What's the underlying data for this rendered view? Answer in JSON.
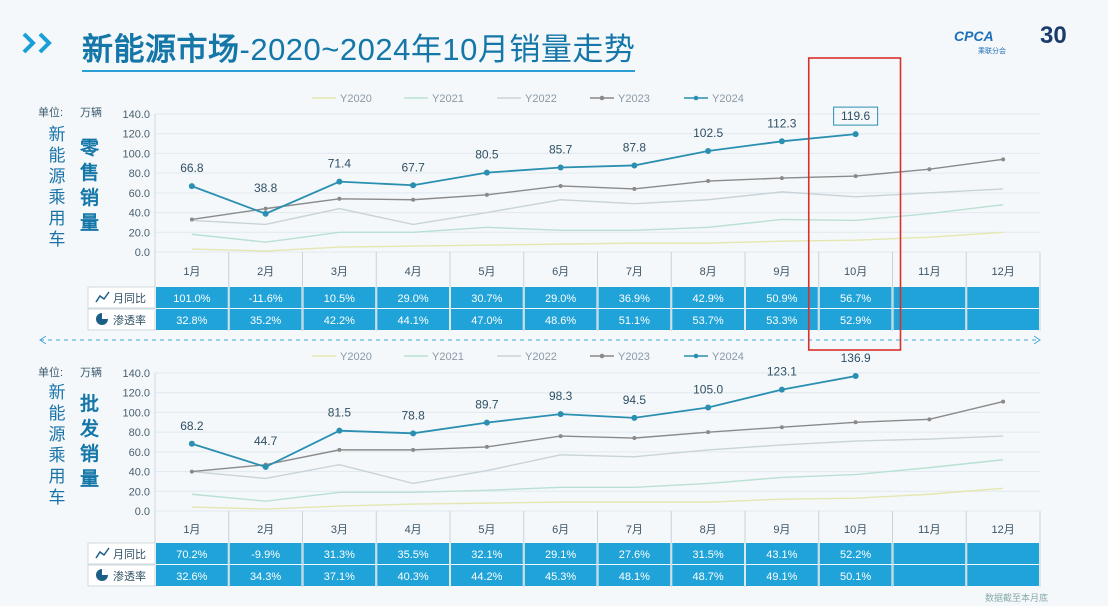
{
  "header": {
    "title_main": "新能源市场",
    "title_sub": "-2020~2024年10月销量走势",
    "logo_text": "CPCA",
    "logo_sub": "乘联分会",
    "logo_anniv": "30"
  },
  "axis_labels": {
    "unit_label": "单位:",
    "unit_value": "万辆",
    "side_label": "新能源乘用车",
    "retail_label": "零售销量",
    "wholesale_label": "批发销量"
  },
  "colors": {
    "accent": "#1477a8",
    "table_fill": "#1fa3d8",
    "y2024": "#2a8fb0",
    "y2023": "#8a8a8a",
    "y2022": "#c9d3d8",
    "y2021": "#b9e0d2",
    "y2020": "#e4e7b0",
    "highlight_box": "#d9302c"
  },
  "chart_data": [
    {
      "type": "line",
      "name_label": "零售销量",
      "categories": [
        "1月",
        "2月",
        "3月",
        "4月",
        "5月",
        "6月",
        "7月",
        "8月",
        "9月",
        "10月",
        "11月",
        "12月"
      ],
      "ylim": [
        0,
        140
      ],
      "yticks": [
        "0.0",
        "20.0",
        "40.0",
        "60.0",
        "80.0",
        "100.0",
        "120.0",
        "140.0"
      ],
      "series": [
        {
          "name": "Y2020",
          "values": [
            3,
            1,
            5,
            6,
            7,
            8,
            9,
            9,
            11,
            12,
            15,
            20
          ]
        },
        {
          "name": "Y2021",
          "values": [
            18,
            10,
            20,
            20,
            25,
            22,
            22,
            25,
            33,
            32,
            39,
            48
          ]
        },
        {
          "name": "Y2022",
          "values": [
            32,
            28,
            44,
            28,
            40,
            53,
            49,
            53,
            61,
            56,
            60,
            64
          ]
        },
        {
          "name": "Y2023",
          "values": [
            33,
            44,
            54,
            53,
            58,
            67,
            64,
            72,
            75,
            77,
            84,
            94
          ]
        },
        {
          "name": "Y2024",
          "values": [
            66.8,
            38.8,
            71.4,
            67.7,
            80.5,
            85.7,
            87.8,
            102.5,
            112.3,
            119.6,
            null,
            null
          ]
        }
      ],
      "data_labels": [
        "66.8",
        "38.8",
        "71.4",
        "67.7",
        "80.5",
        "85.7",
        "87.8",
        "102.5",
        "112.3",
        "119.6"
      ],
      "table": {
        "row1_label": "月同比",
        "row1": [
          "101.0%",
          "-11.6%",
          "10.5%",
          "29.0%",
          "30.7%",
          "29.0%",
          "36.9%",
          "42.9%",
          "50.9%",
          "56.7%",
          "",
          ""
        ],
        "row2_label": "渗透率",
        "row2": [
          "32.8%",
          "35.2%",
          "42.2%",
          "44.1%",
          "47.0%",
          "48.6%",
          "51.1%",
          "53.7%",
          "53.3%",
          "52.9%",
          "",
          ""
        ]
      }
    },
    {
      "type": "line",
      "name_label": "批发销量",
      "categories": [
        "1月",
        "2月",
        "3月",
        "4月",
        "5月",
        "6月",
        "7月",
        "8月",
        "9月",
        "10月",
        "11月",
        "12月"
      ],
      "ylim": [
        0,
        140
      ],
      "yticks": [
        "0.0",
        "20.0",
        "40.0",
        "60.0",
        "80.0",
        "100.0",
        "120.0",
        "140.0"
      ],
      "series": [
        {
          "name": "Y2020",
          "values": [
            4,
            2,
            5,
            7,
            8,
            9,
            9,
            9,
            12,
            13,
            17,
            23
          ]
        },
        {
          "name": "Y2021",
          "values": [
            17,
            10,
            19,
            19,
            21,
            24,
            24,
            28,
            34,
            37,
            44,
            52
          ]
        },
        {
          "name": "Y2022",
          "values": [
            40,
            33,
            47,
            28,
            41,
            57,
            55,
            62,
            67,
            71,
            73,
            76
          ]
        },
        {
          "name": "Y2023",
          "values": [
            40,
            47,
            62,
            62,
            65,
            76,
            74,
            80,
            85,
            90,
            93,
            111
          ]
        },
        {
          "name": "Y2024",
          "values": [
            68.2,
            44.7,
            81.5,
            78.8,
            89.7,
            98.3,
            94.5,
            105.0,
            123.1,
            136.9,
            null,
            null
          ]
        }
      ],
      "data_labels": [
        "68.2",
        "44.7",
        "81.5",
        "78.8",
        "89.7",
        "98.3",
        "94.5",
        "105.0",
        "123.1",
        "136.9"
      ],
      "table": {
        "row1_label": "月同比",
        "row1": [
          "70.2%",
          "-9.9%",
          "31.3%",
          "35.5%",
          "32.1%",
          "29.1%",
          "27.6%",
          "31.5%",
          "43.1%",
          "52.2%",
          "",
          ""
        ],
        "row2_label": "渗透率",
        "row2": [
          "32.6%",
          "34.3%",
          "37.1%",
          "40.3%",
          "44.2%",
          "45.3%",
          "48.1%",
          "48.7%",
          "49.1%",
          "50.1%",
          "",
          ""
        ]
      }
    }
  ],
  "footer": "数据截至本月底"
}
